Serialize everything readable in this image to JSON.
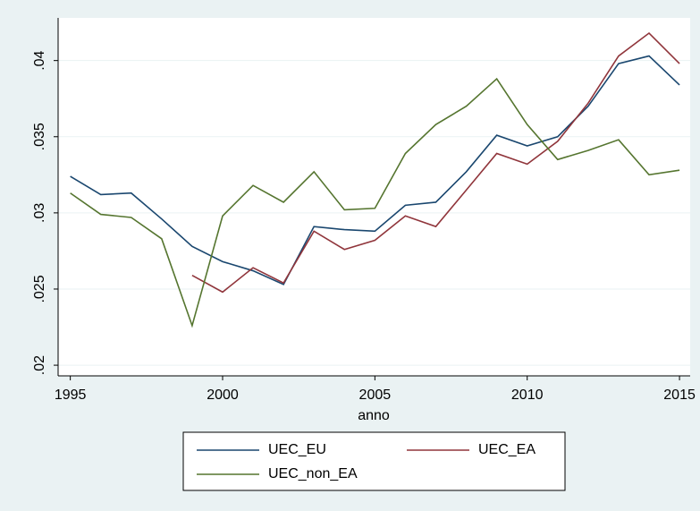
{
  "chart_data": {
    "type": "line",
    "x": [
      1995,
      1996,
      1997,
      1998,
      1999,
      2000,
      2001,
      2002,
      2003,
      2004,
      2005,
      2006,
      2007,
      2008,
      2009,
      2010,
      2011,
      2012,
      2013,
      2014,
      2015
    ],
    "xlabel": "anno",
    "xlim": [
      1994.6,
      2015.35
    ],
    "xticks": [
      1995,
      2000,
      2005,
      2010,
      2015
    ],
    "ylim": [
      0.0193,
      0.0428
    ],
    "yticks": [
      {
        "value": 0.02,
        "label": ".02"
      },
      {
        "value": 0.025,
        "label": ".025"
      },
      {
        "value": 0.03,
        "label": ".03"
      },
      {
        "value": 0.035,
        "label": ".035"
      },
      {
        "value": 0.04,
        "label": ".04"
      }
    ],
    "grid": true,
    "legend": "bottom",
    "series": [
      {
        "name": "UEC_EU",
        "color": "#1a476f",
        "values": [
          0.0324,
          0.0312,
          0.0313,
          0.0296,
          0.0278,
          0.0268,
          0.0262,
          0.0253,
          0.0291,
          0.0289,
          0.0288,
          0.0305,
          0.0307,
          0.0327,
          0.0351,
          0.0344,
          0.035,
          0.037,
          0.0398,
          0.0403,
          0.0384
        ]
      },
      {
        "name": "UEC_EA",
        "color": "#90353b",
        "values": [
          null,
          null,
          null,
          null,
          0.0259,
          0.0248,
          0.0264,
          0.0254,
          0.0288,
          0.0276,
          0.0282,
          0.0298,
          0.0291,
          0.0315,
          0.0339,
          0.0332,
          0.0347,
          0.0372,
          0.0403,
          0.0418,
          0.0398
        ]
      },
      {
        "name": "UEC_non_EA",
        "color": "#55752f",
        "values": [
          0.0313,
          0.0299,
          0.0297,
          0.0283,
          0.0226,
          0.0298,
          0.0318,
          0.0307,
          0.0327,
          0.0302,
          0.0303,
          0.0339,
          0.0358,
          0.037,
          0.0388,
          0.0358,
          0.0335,
          0.0341,
          0.0348,
          0.0325,
          0.0328
        ]
      }
    ]
  }
}
